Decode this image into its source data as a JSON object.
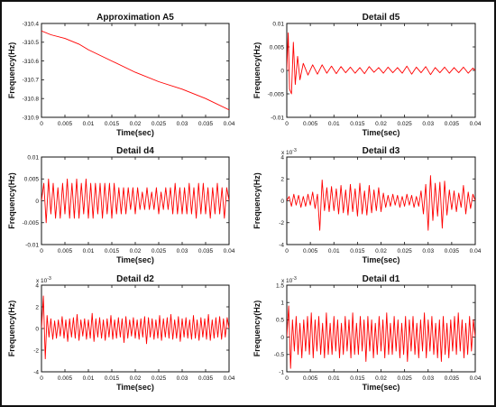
{
  "line_color": "#ff0000",
  "chart_data": [
    {
      "id": "a5",
      "type": "line",
      "title": "Approximation A5",
      "xlabel": "Time(sec)",
      "ylabel": "Frequency(Hz)",
      "xlim": [
        0,
        0.04
      ],
      "ylim": [
        -310.9,
        -310.4
      ],
      "xticks": [
        "0",
        "0.005",
        "0.01",
        "0.015",
        "0.02",
        "0.025",
        "0.03",
        "0.035",
        "0.04"
      ],
      "yticks": [
        "-310.4",
        "-310.5",
        "-310.6",
        "-310.7",
        "-310.8",
        "-310.9"
      ],
      "y_multiplier": "",
      "series": [
        {
          "x": [
            0,
            0.002,
            0.005,
            0.008,
            0.01,
            0.015,
            0.02,
            0.025,
            0.03,
            0.035,
            0.04
          ],
          "y": [
            -310.44,
            -310.46,
            -310.48,
            -310.51,
            -310.54,
            -310.6,
            -310.66,
            -310.71,
            -310.75,
            -310.8,
            -310.86
          ]
        }
      ]
    },
    {
      "id": "d5",
      "type": "line",
      "title": "Detail d5",
      "xlabel": "Time(sec)",
      "ylabel": "Frequency(Hz)",
      "xlim": [
        0,
        0.04
      ],
      "ylim": [
        -0.01,
        0.01
      ],
      "xticks": [
        "0",
        "0.005",
        "0.01",
        "0.015",
        "0.02",
        "0.025",
        "0.03",
        "0.035",
        "0.04"
      ],
      "yticks": [
        "0.01",
        "0.005",
        "0",
        "-0.005",
        "-0.01"
      ],
      "y_multiplier": "",
      "series": [
        {
          "x": [
            0,
            0.0003,
            0.0006,
            0.001,
            0.0014,
            0.0018,
            0.0023,
            0.0028,
            0.0035,
            0.0045,
            0.0055,
            0.0065,
            0.0075,
            0.0085,
            0.0095,
            0.0105,
            0.0115,
            0.0125,
            0.0135,
            0.0145,
            0.0155,
            0.0165,
            0.0175,
            0.0185,
            0.0195,
            0.0205,
            0.0215,
            0.0225,
            0.0235,
            0.0245,
            0.0255,
            0.0265,
            0.0275,
            0.0285,
            0.0295,
            0.0305,
            0.0315,
            0.0325,
            0.0335,
            0.0345,
            0.0355,
            0.0365,
            0.0375,
            0.0385,
            0.0395,
            0.04
          ],
          "y": [
            0.0,
            0.008,
            -0.004,
            -0.005,
            0.006,
            -0.003,
            0.003,
            -0.002,
            0.0015,
            -0.001,
            0.0012,
            -0.0008,
            0.0012,
            -0.0006,
            0.0009,
            -0.0007,
            0.0008,
            -0.0005,
            0.0007,
            -0.0006,
            0.0006,
            -0.0007,
            0.0008,
            -0.0004,
            0.0006,
            -0.0006,
            0.0007,
            -0.0005,
            0.0006,
            -0.0006,
            0.0009,
            -0.0008,
            0.0007,
            -0.0005,
            0.0008,
            -0.0009,
            0.0006,
            -0.0005,
            0.0007,
            -0.0006,
            0.0006,
            -0.0005,
            0.0007,
            -0.0006,
            0.0005,
            0.0
          ]
        }
      ]
    },
    {
      "id": "d4",
      "type": "line",
      "title": "Detail d4",
      "xlabel": "Time(sec)",
      "ylabel": "Frequency(Hz)",
      "xlim": [
        0,
        0.04
      ],
      "ylim": [
        -0.01,
        0.01
      ],
      "xticks": [
        "0",
        "0.005",
        "0.01",
        "0.015",
        "0.02",
        "0.025",
        "0.03",
        "0.035",
        "0.04"
      ],
      "yticks": [
        "0.01",
        "0.005",
        "0",
        "-0.005",
        "-0.01"
      ],
      "y_multiplier": "",
      "series": [
        {
          "x": [
            0,
            0.0005,
            0.001,
            0.0015,
            0.002,
            0.0025,
            0.003,
            0.0035,
            0.004,
            0.0045,
            0.005,
            0.0055,
            0.006,
            0.0065,
            0.007,
            0.0075,
            0.008,
            0.0085,
            0.009,
            0.0095,
            0.01,
            0.0105,
            0.011,
            0.0115,
            0.012,
            0.0125,
            0.013,
            0.0135,
            0.014,
            0.0145,
            0.015,
            0.0155,
            0.016,
            0.0165,
            0.017,
            0.0175,
            0.018,
            0.0185,
            0.019,
            0.0195,
            0.02,
            0.0205,
            0.021,
            0.0215,
            0.022,
            0.0225,
            0.023,
            0.0235,
            0.024,
            0.0245,
            0.025,
            0.0255,
            0.026,
            0.0265,
            0.027,
            0.0275,
            0.028,
            0.0285,
            0.029,
            0.0295,
            0.03,
            0.0305,
            0.031,
            0.0315,
            0.032,
            0.0325,
            0.033,
            0.0335,
            0.034,
            0.0345,
            0.035,
            0.0355,
            0.036,
            0.0365,
            0.037,
            0.0375,
            0.038,
            0.0385,
            0.039,
            0.0395,
            0.04
          ],
          "y": [
            0.0,
            0.004,
            -0.005,
            0.005,
            -0.003,
            0.004,
            -0.004,
            0.003,
            -0.004,
            0.004,
            -0.003,
            0.005,
            -0.004,
            0.004,
            -0.004,
            0.005,
            -0.004,
            0.004,
            -0.003,
            0.005,
            -0.004,
            0.004,
            -0.004,
            0.004,
            -0.003,
            0.004,
            -0.004,
            0.004,
            -0.003,
            0.004,
            -0.004,
            0.004,
            -0.003,
            0.003,
            -0.003,
            0.003,
            -0.003,
            0.003,
            -0.002,
            0.003,
            -0.003,
            0.003,
            -0.002,
            0.002,
            -0.002,
            0.003,
            -0.002,
            0.002,
            -0.002,
            0.003,
            -0.003,
            0.002,
            -0.002,
            0.003,
            -0.002,
            0.003,
            -0.003,
            0.004,
            -0.003,
            0.003,
            -0.003,
            0.003,
            -0.003,
            0.004,
            -0.003,
            0.003,
            -0.004,
            0.004,
            -0.003,
            0.004,
            -0.003,
            0.003,
            -0.004,
            0.003,
            -0.003,
            0.004,
            -0.003,
            0.003,
            -0.004,
            0.003,
            0.0
          ]
        }
      ]
    },
    {
      "id": "d3",
      "type": "line",
      "title": "Detail d3",
      "xlabel": "Time(sec)",
      "ylabel": "Frequency(Hz)",
      "xlim": [
        0,
        0.04
      ],
      "ylim": [
        -4,
        4
      ],
      "xticks": [
        "0",
        "0.005",
        "0.01",
        "0.015",
        "0.02",
        "0.025",
        "0.03",
        "0.035",
        "0.04"
      ],
      "yticks": [
        "4",
        "2",
        "0",
        "-2",
        "-4"
      ],
      "y_multiplier": "x 10",
      "y_multiplier_exp": "-3",
      "series": [
        {
          "x": [
            0,
            0.0005,
            0.001,
            0.0015,
            0.002,
            0.0025,
            0.003,
            0.0035,
            0.004,
            0.0045,
            0.005,
            0.0055,
            0.006,
            0.0065,
            0.007,
            0.0075,
            0.008,
            0.0085,
            0.009,
            0.0095,
            0.01,
            0.0105,
            0.011,
            0.0115,
            0.012,
            0.0125,
            0.013,
            0.0135,
            0.014,
            0.0145,
            0.015,
            0.0155,
            0.016,
            0.0165,
            0.017,
            0.0175,
            0.018,
            0.0185,
            0.019,
            0.0195,
            0.02,
            0.0205,
            0.021,
            0.0215,
            0.022,
            0.0225,
            0.023,
            0.0235,
            0.024,
            0.0245,
            0.025,
            0.0255,
            0.026,
            0.0265,
            0.027,
            0.0275,
            0.028,
            0.0285,
            0.029,
            0.0295,
            0.03,
            0.0305,
            0.031,
            0.0315,
            0.032,
            0.0325,
            0.033,
            0.0335,
            0.034,
            0.0345,
            0.035,
            0.0355,
            0.036,
            0.0365,
            0.037,
            0.0375,
            0.038,
            0.0385,
            0.039,
            0.0395,
            0.04
          ],
          "y": [
            0.0,
            0.4,
            -0.5,
            0.6,
            -0.4,
            0.5,
            -0.6,
            0.4,
            -0.5,
            0.6,
            -0.4,
            0.8,
            -0.7,
            0.6,
            -2.7,
            1.9,
            -0.9,
            1.2,
            -1.0,
            1.3,
            -0.9,
            1.1,
            -1.2,
            1.4,
            -1.1,
            1.0,
            -1.3,
            1.5,
            -1.0,
            1.1,
            -1.4,
            1.6,
            -1.2,
            0.9,
            -1.3,
            1.4,
            -1.1,
            1.0,
            -0.9,
            1.2,
            -1.0,
            0.7,
            -0.6,
            0.5,
            -0.5,
            0.6,
            -0.4,
            0.5,
            -0.6,
            0.4,
            -0.5,
            0.6,
            -0.4,
            0.5,
            -0.6,
            0.4,
            -0.5,
            0.9,
            -1.2,
            1.5,
            -2.7,
            2.3,
            -1.8,
            1.6,
            -1.4,
            1.7,
            -2.5,
            1.8,
            -1.3,
            1.0,
            -0.8,
            0.9,
            -1.0,
            0.7,
            -0.6,
            1.4,
            -1.2,
            0.8,
            -0.7,
            0.6,
            0.0
          ]
        }
      ]
    },
    {
      "id": "d2",
      "type": "line",
      "title": "Detail d2",
      "xlabel": "Time(sec)",
      "ylabel": "Frequency(Hz)",
      "xlim": [
        0,
        0.04
      ],
      "ylim": [
        -4,
        4
      ],
      "xticks": [
        "0",
        "0.005",
        "0.01",
        "0.015",
        "0.02",
        "0.025",
        "0.03",
        "0.035",
        "0.04"
      ],
      "yticks": [
        "4",
        "2",
        "0",
        "-2",
        "-4"
      ],
      "y_multiplier": "x 10",
      "y_multiplier_exp": "-3",
      "series": [
        {
          "x": [
            0,
            0.0004,
            0.0008,
            0.0012,
            0.0016,
            0.002,
            0.0024,
            0.0028,
            0.0032,
            0.0036,
            0.004,
            0.0044,
            0.0048,
            0.0052,
            0.0056,
            0.006,
            0.0064,
            0.0068,
            0.0072,
            0.0076,
            0.008,
            0.0084,
            0.0088,
            0.0092,
            0.0096,
            0.01,
            0.0104,
            0.0108,
            0.0112,
            0.0116,
            0.012,
            0.0124,
            0.0128,
            0.0132,
            0.0136,
            0.014,
            0.0144,
            0.0148,
            0.0152,
            0.0156,
            0.016,
            0.0164,
            0.0168,
            0.0172,
            0.0176,
            0.018,
            0.0184,
            0.0188,
            0.0192,
            0.0196,
            0.02,
            0.0204,
            0.0208,
            0.0212,
            0.0216,
            0.022,
            0.0224,
            0.0228,
            0.0232,
            0.0236,
            0.024,
            0.0244,
            0.0248,
            0.0252,
            0.0256,
            0.026,
            0.0264,
            0.0268,
            0.0272,
            0.0276,
            0.028,
            0.0284,
            0.0288,
            0.0292,
            0.0296,
            0.03,
            0.0304,
            0.0308,
            0.0312,
            0.0316,
            0.032,
            0.0324,
            0.0328,
            0.0332,
            0.0336,
            0.034,
            0.0344,
            0.0348,
            0.0352,
            0.0356,
            0.036,
            0.0364,
            0.0368,
            0.0372,
            0.0376,
            0.038,
            0.0384,
            0.0388,
            0.0392,
            0.0396,
            0.04
          ],
          "y": [
            0.0,
            3.0,
            -2.8,
            1.2,
            -0.8,
            0.9,
            -1.0,
            0.7,
            -0.9,
            0.8,
            -0.7,
            1.1,
            -0.9,
            0.8,
            -1.2,
            0.9,
            -0.8,
            1.0,
            -0.9,
            1.3,
            -1.1,
            0.8,
            -0.7,
            0.9,
            -1.0,
            0.8,
            -0.9,
            1.4,
            -1.2,
            0.9,
            -0.8,
            1.0,
            -0.9,
            0.8,
            -1.1,
            0.9,
            -0.8,
            1.2,
            -1.0,
            0.8,
            -0.9,
            1.0,
            -0.8,
            0.9,
            -1.3,
            1.1,
            -0.9,
            0.8,
            -0.7,
            1.0,
            -0.9,
            0.8,
            -1.0,
            0.9,
            -0.8,
            1.1,
            -1.4,
            1.0,
            -0.8,
            0.9,
            -1.0,
            0.8,
            -0.9,
            1.2,
            -1.1,
            0.9,
            -0.8,
            1.0,
            -0.9,
            1.3,
            -1.0,
            0.8,
            -0.9,
            1.1,
            -1.2,
            0.9,
            -0.8,
            1.0,
            -0.9,
            0.8,
            -1.0,
            1.2,
            -0.9,
            0.8,
            -1.1,
            1.0,
            -0.8,
            0.9,
            -1.0,
            1.3,
            -1.1,
            0.8,
            -0.9,
            1.0,
            -0.8,
            1.1,
            -1.0,
            0.9,
            -0.8,
            1.0,
            0.0
          ]
        }
      ]
    },
    {
      "id": "d1",
      "type": "line",
      "title": "Detail d1",
      "xlabel": "Time(sec)",
      "ylabel": "Frequency(Hz)",
      "xlim": [
        0,
        0.04
      ],
      "ylim": [
        -1,
        1.5
      ],
      "xticks": [
        "0",
        "0.005",
        "0.01",
        "0.015",
        "0.02",
        "0.025",
        "0.03",
        "0.035",
        "0.04"
      ],
      "yticks": [
        "1.5",
        "1",
        "0.5",
        "0",
        "-0.5",
        "-1"
      ],
      "y_multiplier": "x 10",
      "y_multiplier_exp": "-3",
      "series": [
        {
          "x": [
            0,
            0.0004,
            0.0008,
            0.0012,
            0.0016,
            0.002,
            0.0024,
            0.0028,
            0.0032,
            0.0036,
            0.004,
            0.0044,
            0.0048,
            0.0052,
            0.0056,
            0.006,
            0.0064,
            0.0068,
            0.0072,
            0.0076,
            0.008,
            0.0084,
            0.0088,
            0.0092,
            0.0096,
            0.01,
            0.0104,
            0.0108,
            0.0112,
            0.0116,
            0.012,
            0.0124,
            0.0128,
            0.0132,
            0.0136,
            0.014,
            0.0144,
            0.0148,
            0.0152,
            0.0156,
            0.016,
            0.0164,
            0.0168,
            0.0172,
            0.0176,
            0.018,
            0.0184,
            0.0188,
            0.0192,
            0.0196,
            0.02,
            0.0204,
            0.0208,
            0.0212,
            0.0216,
            0.022,
            0.0224,
            0.0228,
            0.0232,
            0.0236,
            0.024,
            0.0244,
            0.0248,
            0.0252,
            0.0256,
            0.026,
            0.0264,
            0.0268,
            0.0272,
            0.0276,
            0.028,
            0.0284,
            0.0288,
            0.0292,
            0.0296,
            0.03,
            0.0304,
            0.0308,
            0.0312,
            0.0316,
            0.032,
            0.0324,
            0.0328,
            0.0332,
            0.0336,
            0.034,
            0.0344,
            0.0348,
            0.0352,
            0.0356,
            0.036,
            0.0364,
            0.0368,
            0.0372,
            0.0376,
            0.038,
            0.0384,
            0.0388,
            0.0392,
            0.0396,
            0.04
          ],
          "y": [
            0.0,
            0.9,
            -0.9,
            0.5,
            -0.4,
            0.6,
            -0.5,
            0.4,
            -0.6,
            0.5,
            -0.4,
            0.6,
            -0.5,
            0.7,
            -0.6,
            0.5,
            -0.4,
            0.6,
            -0.5,
            0.4,
            -0.6,
            0.7,
            -0.5,
            0.4,
            -0.5,
            0.6,
            -0.4,
            0.5,
            -0.6,
            0.4,
            -0.5,
            0.6,
            -0.4,
            0.5,
            -0.6,
            0.7,
            -0.5,
            0.4,
            -0.5,
            0.6,
            -0.4,
            0.5,
            -0.7,
            0.6,
            -0.4,
            0.5,
            -0.6,
            0.4,
            -0.5,
            0.6,
            -0.4,
            0.5,
            -0.6,
            0.7,
            -0.5,
            0.4,
            -0.5,
            0.6,
            -0.4,
            0.5,
            -0.6,
            0.4,
            -0.5,
            0.6,
            -0.7,
            0.5,
            -0.4,
            0.6,
            -0.5,
            0.4,
            -0.6,
            0.5,
            -0.4,
            0.7,
            -0.6,
            0.5,
            -0.4,
            0.6,
            -0.5,
            0.4,
            -0.6,
            0.5,
            -0.7,
            0.6,
            -0.5,
            0.4,
            -0.6,
            0.5,
            -0.4,
            0.6,
            -0.5,
            0.7,
            -0.4,
            0.5,
            -0.6,
            0.4,
            -0.5,
            0.6,
            -0.4,
            0.5,
            0.0
          ]
        }
      ]
    }
  ]
}
